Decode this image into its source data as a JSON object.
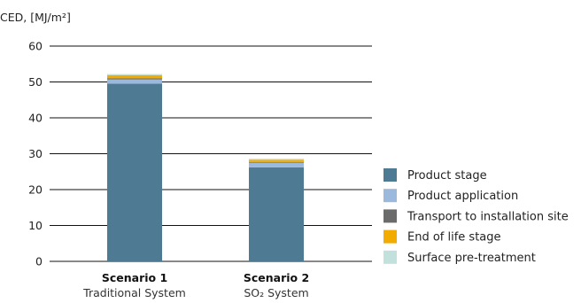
{
  "chart_data": {
    "type": "bar",
    "stacked": true,
    "ylabel": "CED, [MJ/m²]",
    "ylim": [
      0,
      60
    ],
    "yticks": [
      0,
      10,
      20,
      30,
      40,
      50,
      60
    ],
    "grid": true,
    "legend_position": "right",
    "categories": [
      {
        "name": "Scenario 1",
        "subtitle": "Traditional System"
      },
      {
        "name": "Scenario 2",
        "subtitle": "SO₂ System"
      }
    ],
    "series": [
      {
        "name": "Product stage",
        "color": "#4f7a93",
        "values": [
          49.5,
          26.2
        ]
      },
      {
        "name": "Product application",
        "color": "#9bb9dc",
        "values": [
          1.2,
          1.3
        ]
      },
      {
        "name": "Transport to installation site",
        "color": "#6b6b6b",
        "values": [
          0.3,
          0.2
        ]
      },
      {
        "name": "End of life stage",
        "color": "#f2ab00",
        "values": [
          0.9,
          0.6
        ]
      },
      {
        "name": "Surface pre-treatment",
        "color": "#c2e0dc",
        "values": [
          0.3,
          0.3
        ]
      }
    ]
  }
}
